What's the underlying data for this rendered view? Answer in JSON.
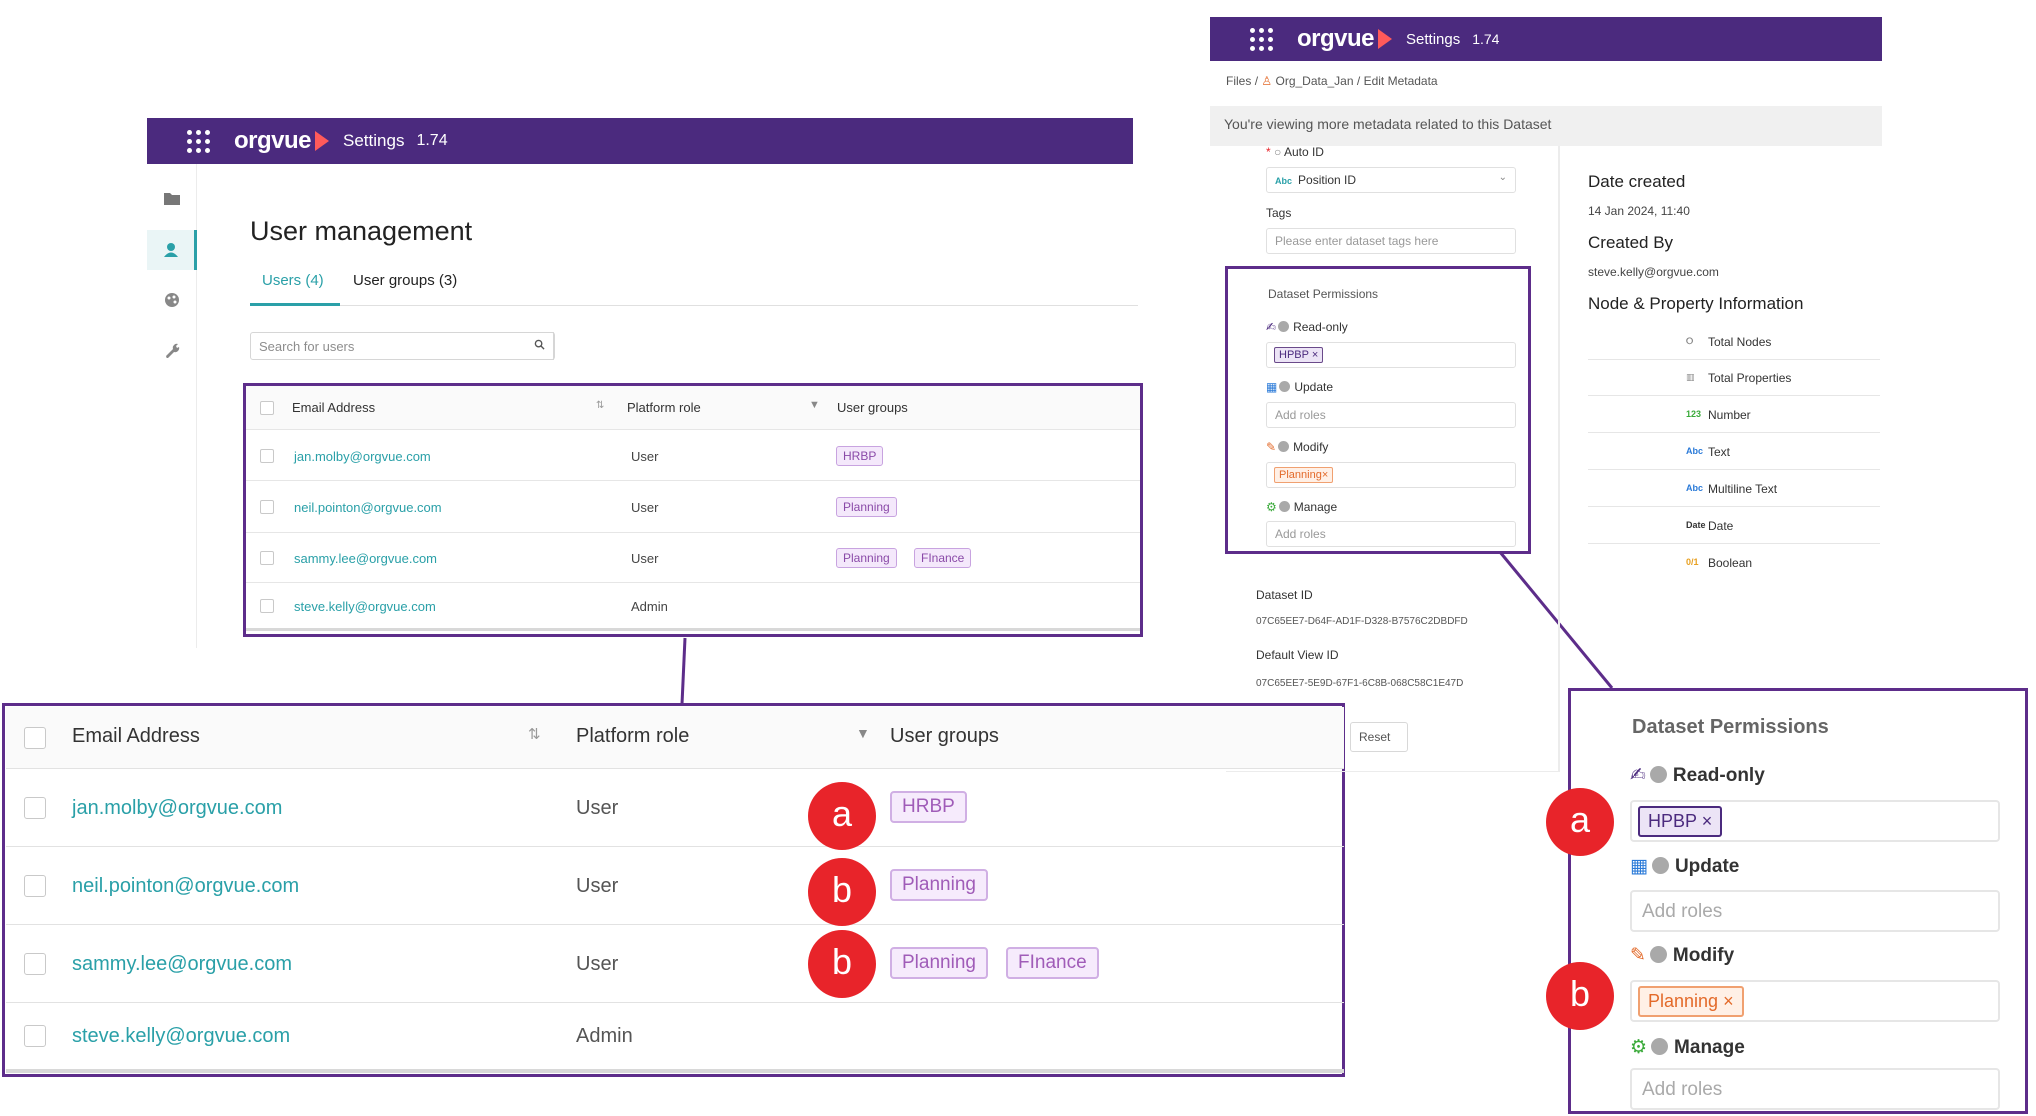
{
  "header": {
    "brand": "orgvue",
    "settings": "Settings",
    "version": "1.74"
  },
  "left_panel": {
    "title": "User management",
    "tabs": [
      {
        "label": "Users (4)"
      },
      {
        "label": "User groups (3)"
      }
    ],
    "search_placeholder": "Search for users",
    "columns": {
      "email": "Email Address",
      "role": "Platform role",
      "groups": "User groups"
    },
    "rows": [
      {
        "email": "jan.molby@orgvue.com",
        "role": "User",
        "groups": [
          "HRBP"
        ]
      },
      {
        "email": "neil.pointon@orgvue.com",
        "role": "User",
        "groups": [
          "Planning"
        ]
      },
      {
        "email": "sammy.lee@orgvue.com",
        "role": "User",
        "groups": [
          "Planning",
          "FInance"
        ]
      },
      {
        "email": "steve.kelly@orgvue.com",
        "role": "Admin",
        "groups": []
      }
    ]
  },
  "callouts": {
    "a": "a",
    "b": "b"
  },
  "right_panel": {
    "breadcrumb": {
      "files": "Files",
      "sep": "/",
      "dataset": "Org_Data_Jan",
      "page": "Edit Metadata"
    },
    "banner": "You're viewing more metadata related to this Dataset",
    "required_mark": "*",
    "auto_id_label": "Auto ID",
    "auto_id_abc": "Abc",
    "auto_id_value": "Position ID",
    "tags_label": "Tags",
    "tags_placeholder": "Please enter dataset tags here",
    "permissions_title": "Dataset Permissions",
    "permissions": {
      "readonly_label": "Read-only",
      "readonly_tag": "HPBP",
      "update_label": "Update",
      "update_placeholder": "Add roles",
      "modify_label": "Modify",
      "modify_tag": "Planning",
      "manage_label": "Manage",
      "manage_placeholder": "Add roles",
      "tag_remove": "×"
    },
    "dataset_id_label": "Dataset ID",
    "dataset_id_value": "07C65EE7-D64F-AD1F-D328-B7576C2DBDFD",
    "default_view_id_label": "Default View ID",
    "default_view_id_value": "07C65EE7-5E9D-67F1-6C8B-068C58C1E47D",
    "reset_label": "Reset",
    "date_created_label": "Date created",
    "date_created_value": "14 Jan 2024, 11:40",
    "created_by_label": "Created By",
    "created_by_value": "steve.kelly@orgvue.com",
    "node_info_title": "Node & Property Information",
    "node_info": [
      {
        "icon": "",
        "label": "Total Nodes"
      },
      {
        "icon": "",
        "label": "Total Properties"
      },
      {
        "icon": "123",
        "label": "Number"
      },
      {
        "icon": "Abc",
        "label": "Text"
      },
      {
        "icon": "Abc",
        "label": "Multiline Text"
      },
      {
        "icon": "Date",
        "label": "Date"
      },
      {
        "icon": "0/1",
        "label": "Boolean"
      }
    ]
  },
  "colors": {
    "header": "#4b2a7e",
    "accent": "#2aa0a8",
    "callout": "#e8242a",
    "frame": "#5d2d8a"
  }
}
